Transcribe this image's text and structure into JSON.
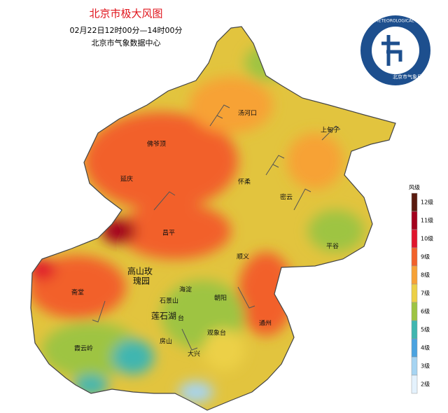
{
  "header": {
    "title": "北京市极大风图",
    "subtitle": "02月22日12时00分—14时00分",
    "source": "北京市气象数据中心"
  },
  "logo": {
    "en": "BEIJING METEOROLOGICAL SERVICE",
    "cn": "北京市气象局"
  },
  "places": [
    "汤河口",
    "上甸子",
    "佛爷顶",
    "延庆",
    "怀柔",
    "密云",
    "昌平",
    "平谷",
    "顺义",
    "高山玫",
    "瑰园",
    "斋堂",
    "海淀",
    "石景山",
    "朝阳",
    "莲石湖",
    "台",
    "观象台",
    "房山",
    "大兴",
    "通州",
    "霞云岭"
  ],
  "legend": {
    "title": "风级",
    "levels": [
      {
        "label": "12级",
        "color": "#5a1a0e"
      },
      {
        "label": "11级",
        "color": "#a3001c"
      },
      {
        "label": "10级",
        "color": "#e0142c"
      },
      {
        "label": "9级",
        "color": "#f2612a"
      },
      {
        "label": "8级",
        "color": "#f7a236"
      },
      {
        "label": "7级",
        "color": "#ecd046"
      },
      {
        "label": "6级",
        "color": "#9ec443"
      },
      {
        "label": "5级",
        "color": "#3fb6b0"
      },
      {
        "label": "4级",
        "color": "#4aa3e0"
      },
      {
        "label": "3级",
        "color": "#a6d4f2"
      },
      {
        "label": "2级",
        "color": "#e4f2fd"
      }
    ]
  }
}
